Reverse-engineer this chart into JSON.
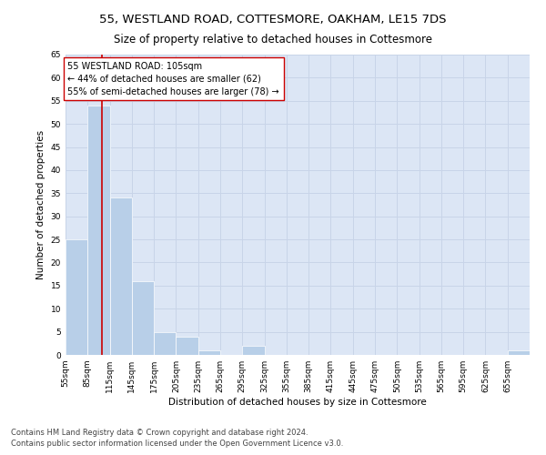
{
  "title1": "55, WESTLAND ROAD, COTTESMORE, OAKHAM, LE15 7DS",
  "title2": "Size of property relative to detached houses in Cottesmore",
  "xlabel": "Distribution of detached houses by size in Cottesmore",
  "ylabel": "Number of detached properties",
  "bin_edges": [
    55,
    85,
    115,
    145,
    175,
    205,
    235,
    265,
    295,
    325,
    355,
    385,
    415,
    445,
    475,
    505,
    535,
    565,
    595,
    625,
    655,
    685
  ],
  "bin_labels": [
    "55sqm",
    "85sqm",
    "115sqm",
    "145sqm",
    "175sqm",
    "205sqm",
    "235sqm",
    "265sqm",
    "295sqm",
    "325sqm",
    "355sqm",
    "385sqm",
    "415sqm",
    "445sqm",
    "475sqm",
    "505sqm",
    "535sqm",
    "565sqm",
    "595sqm",
    "625sqm",
    "655sqm"
  ],
  "bar_values": [
    25,
    54,
    34,
    16,
    5,
    4,
    1,
    0,
    2,
    0,
    0,
    0,
    0,
    0,
    0,
    0,
    0,
    0,
    0,
    0,
    1
  ],
  "bar_color": "#b8cfe8",
  "grid_color": "#c8d4e8",
  "background_color": "#dce6f5",
  "vline_x": 105,
  "vline_color": "#cc0000",
  "annotation_box_text": "55 WESTLAND ROAD: 105sqm\n← 44% of detached houses are smaller (62)\n55% of semi-detached houses are larger (78) →",
  "ylim": [
    0,
    65
  ],
  "yticks": [
    0,
    5,
    10,
    15,
    20,
    25,
    30,
    35,
    40,
    45,
    50,
    55,
    60,
    65
  ],
  "footnote1": "Contains HM Land Registry data © Crown copyright and database right 2024.",
  "footnote2": "Contains public sector information licensed under the Open Government Licence v3.0.",
  "title_fontsize": 9.5,
  "subtitle_fontsize": 8.5,
  "axis_label_fontsize": 7.5,
  "tick_fontsize": 6.5,
  "annotation_fontsize": 7,
  "footnote_fontsize": 6
}
